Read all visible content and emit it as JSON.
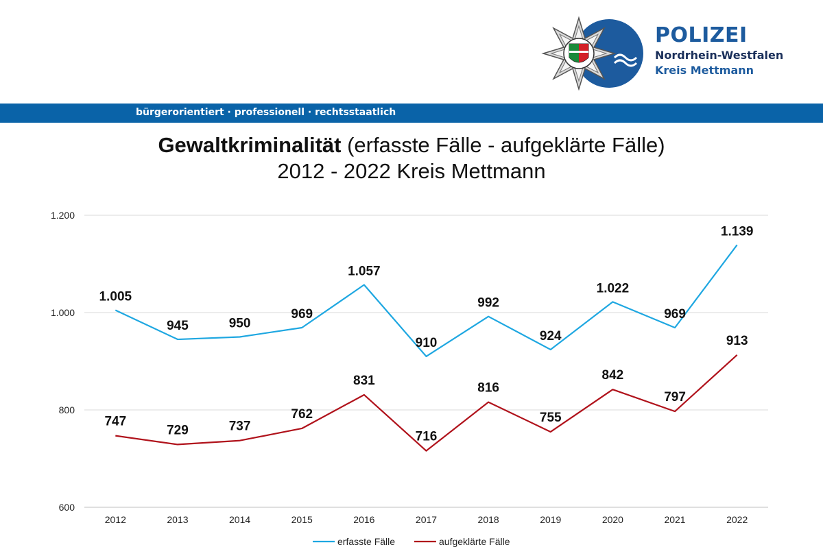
{
  "header": {
    "brand_title": "POLIZEI",
    "brand_state": "Nordrhein-Westfalen",
    "brand_district": "Kreis Mettmann",
    "slogan": "bürgerorientiert · professionell · rechtsstaatlich",
    "colors": {
      "band": "#0a63a8",
      "brand": "#1d5b9e"
    }
  },
  "chart_data": {
    "type": "line",
    "title_bold": "Gewaltkriminalität",
    "title_rest": " (erfasste Fälle - aufgeklärte Fälle)",
    "subtitle": "2012 - 2022 Kreis Mettmann",
    "categories": [
      "2012",
      "2013",
      "2014",
      "2015",
      "2016",
      "2017",
      "2018",
      "2019",
      "2020",
      "2021",
      "2022"
    ],
    "ylim": [
      600,
      1200
    ],
    "yticks": [
      600,
      800,
      1000,
      1200
    ],
    "ytick_labels": [
      "600",
      "800",
      "1.000",
      "1.200"
    ],
    "grid": true,
    "legend": "bottom-center",
    "series": [
      {
        "name": "erfasste Fälle",
        "color": "#1ea7e1",
        "values": [
          1005,
          945,
          950,
          969,
          1057,
          910,
          992,
          924,
          1022,
          969,
          1139
        ],
        "labels": [
          "1.005",
          "945",
          "950",
          "969",
          "1.057",
          "910",
          "992",
          "924",
          "1.022",
          "969",
          "1.139"
        ]
      },
      {
        "name": "aufgeklärte Fälle",
        "color": "#b0121b",
        "values": [
          747,
          729,
          737,
          762,
          831,
          716,
          816,
          755,
          842,
          797,
          913
        ],
        "labels": [
          "747",
          "729",
          "737",
          "762",
          "831",
          "716",
          "816",
          "755",
          "842",
          "797",
          "913"
        ]
      }
    ]
  }
}
